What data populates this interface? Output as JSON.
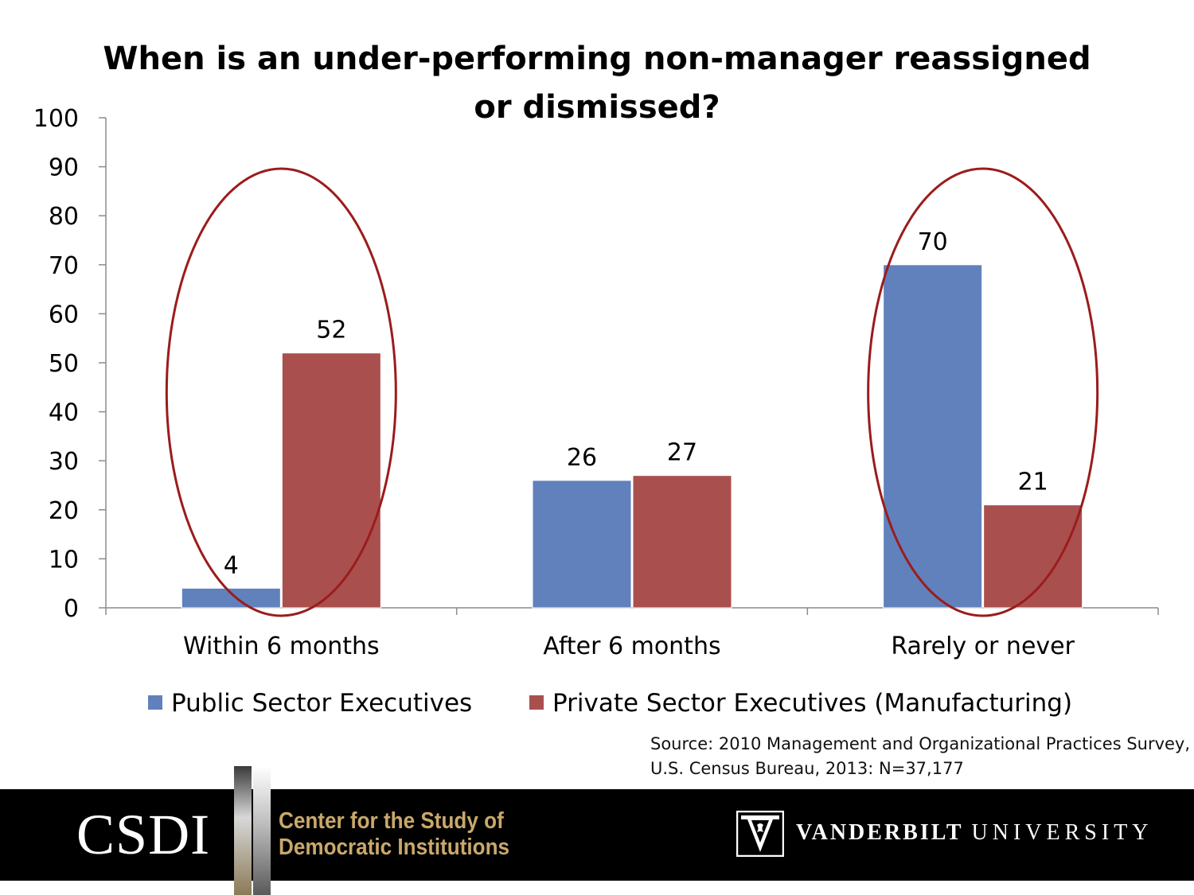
{
  "chart_data": {
    "type": "bar",
    "title_lines": [
      "When is an under-performing non-manager reassigned",
      "or dismissed?"
    ],
    "categories": [
      "Within 6 months",
      "After 6 months",
      "Rarely or never"
    ],
    "series": [
      {
        "name": "Public Sector Executives",
        "values": [
          4,
          26,
          70
        ],
        "color": "#6181bd"
      },
      {
        "name": "Private Sector Executives (Manufacturing)",
        "values": [
          52,
          27,
          21
        ],
        "color": "#a9504e"
      }
    ],
    "ylim": [
      0,
      100
    ],
    "yticks": [
      0,
      10,
      20,
      30,
      40,
      50,
      60,
      70,
      80,
      90,
      100
    ],
    "legend_position": "bottom",
    "grid": false,
    "data_labels": true,
    "highlighted_categories": [
      "Within 6 months",
      "Rarely or never"
    ],
    "highlight_color": "#9b1c1c"
  },
  "source": {
    "line1": "Source: 2010 Management and Organizational Practices Survey,",
    "line2": "U.S. Census Bureau, 2013: N=37,177"
  },
  "footer": {
    "csdi_abbrev": "CSDI",
    "csdi_line1": "Center for the Study of",
    "csdi_line2": "Democratic Institutions",
    "vu_word1": "VANDERBILT",
    "vu_word2": "UNIVERSITY"
  }
}
